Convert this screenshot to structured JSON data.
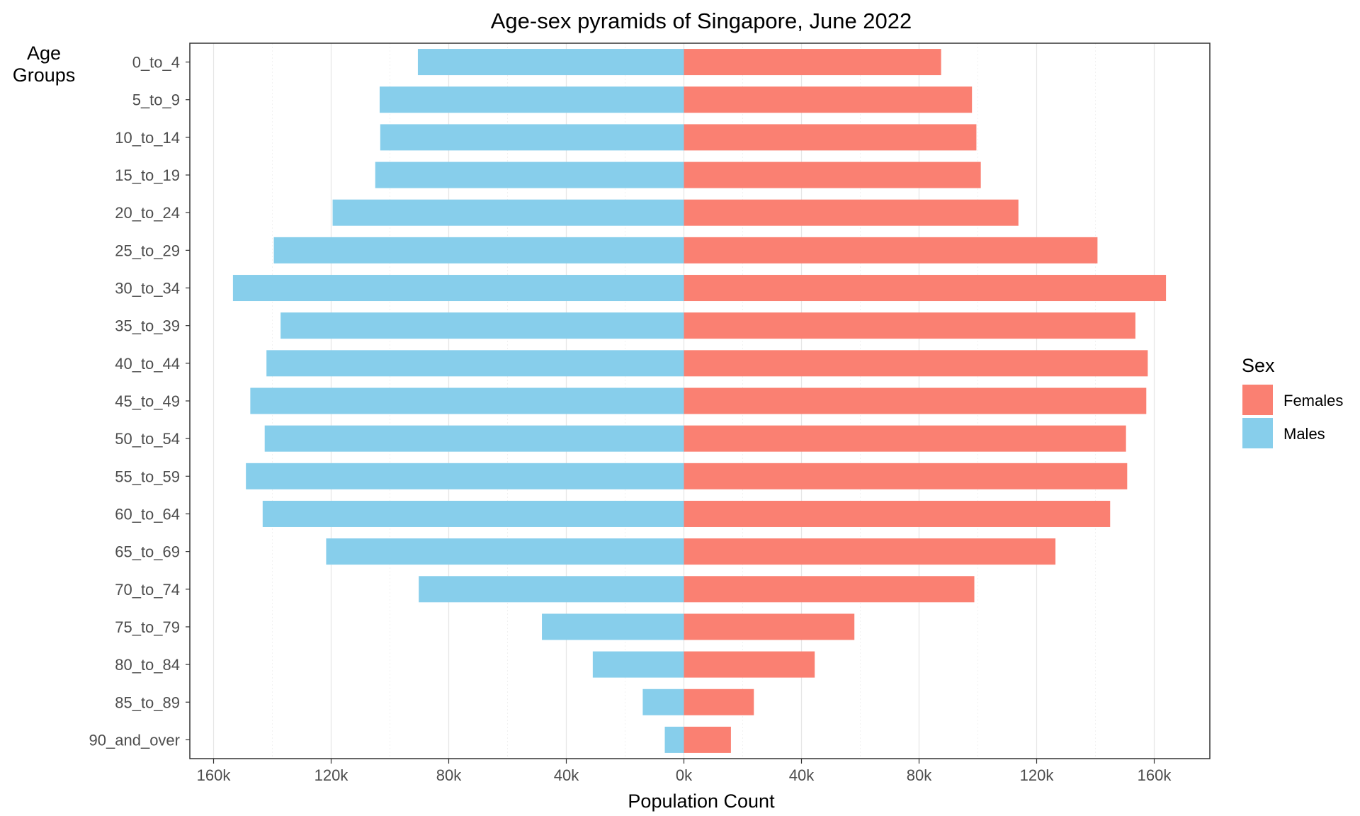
{
  "chart_data": {
    "type": "bar",
    "orientation": "horizontal",
    "title": "Age-sex pyramids of Singapore, June 2022",
    "xlabel": "Population Count",
    "ylabel": "Age\nGroups",
    "categories": [
      "0_to_4",
      "5_to_9",
      "10_to_14",
      "15_to_19",
      "20_to_24",
      "25_to_29",
      "30_to_34",
      "35_to_39",
      "40_to_44",
      "45_to_49",
      "50_to_54",
      "55_to_59",
      "60_to_64",
      "65_to_69",
      "70_to_74",
      "75_to_79",
      "80_to_84",
      "85_to_89",
      "90_and_over"
    ],
    "series": [
      {
        "name": "Females",
        "color": "#FA8072",
        "values": [
          87500,
          98000,
          99500,
          101000,
          113800,
          140700,
          164000,
          153600,
          157800,
          157300,
          150400,
          150800,
          145000,
          126400,
          98800,
          58000,
          44500,
          23800,
          16000
        ]
      },
      {
        "name": "Males",
        "color": "#87CEEB",
        "values": [
          -90500,
          -103500,
          -103300,
          -105000,
          -119500,
          -139500,
          -153400,
          -137200,
          -142000,
          -147500,
          -142600,
          -149000,
          -143300,
          -121700,
          -90200,
          -48300,
          -31000,
          -14000,
          -6500
        ]
      }
    ],
    "xlim": [
      -168000,
      180000
    ],
    "xticks": [
      -160000,
      -120000,
      -80000,
      -40000,
      0,
      40000,
      80000,
      120000,
      160000
    ],
    "xtick_labels": [
      "160k",
      "120k",
      "80k",
      "40k",
      "0k",
      "40k",
      "80k",
      "120k",
      "160k"
    ],
    "grid": true,
    "legend": {
      "title": "Sex",
      "position": "right",
      "entries": [
        "Females",
        "Males"
      ]
    }
  }
}
